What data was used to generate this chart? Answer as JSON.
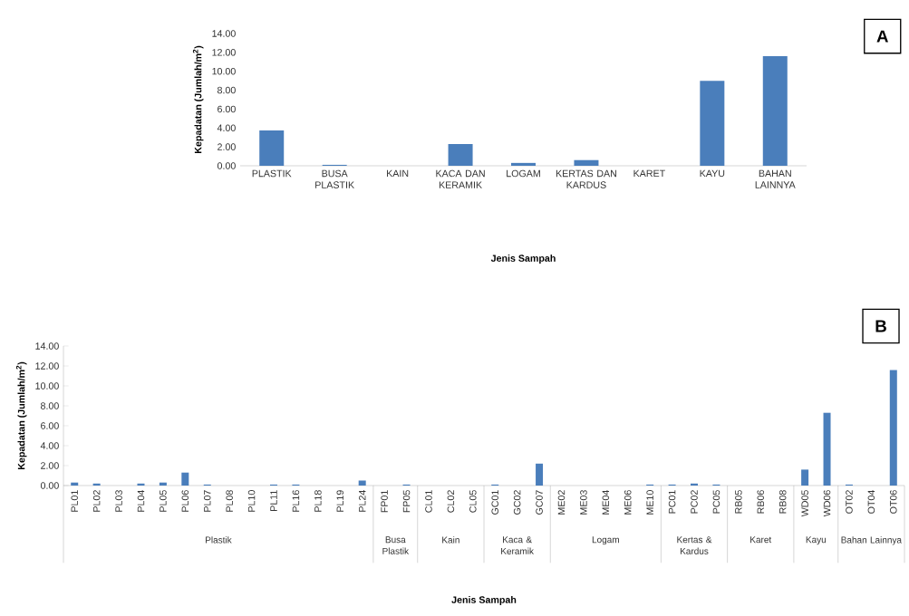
{
  "chart_data": [
    {
      "type": "bar",
      "categories": [
        "PLASTIK",
        "BUSA PLASTIK",
        "KAIN",
        "KACA DAN KERAMIK",
        "LOGAM",
        "KERTAS DAN KARDUS",
        "KARET",
        "KAYU",
        "BAHAN LAINNYA"
      ],
      "values": [
        3.75,
        0.1,
        0,
        2.3,
        0.3,
        0.6,
        0,
        9.0,
        11.6
      ],
      "color": "#4a7ebb",
      "xlabel": "Jenis Sampah",
      "ylabel": "Kepadatan (Jumlah/m$^{2}$)",
      "ylim": [
        0,
        14
      ],
      "yticks": [
        {
          "value": 0,
          "label": "0.00"
        },
        {
          "value": 2,
          "label": "2.00"
        },
        {
          "value": 4,
          "label": "4.00"
        },
        {
          "value": 6,
          "label": "6.00"
        },
        {
          "value": 8,
          "label": "8.00"
        },
        {
          "value": 10,
          "label": "10.00"
        },
        {
          "value": 12,
          "label": "12.00"
        },
        {
          "value": 14,
          "label": "14.00"
        }
      ],
      "annotations": [
        "A"
      ]
    },
    {
      "type": "bar",
      "categories": [
        "PL01",
        "PL02",
        "PL03",
        "PL04",
        "PL05",
        "PL06",
        "PL07",
        "PL08",
        "PL10",
        "PL11",
        "PL16",
        "PL18",
        "PL19",
        "PL24",
        "FP01",
        "FP05",
        "CL01",
        "CL02",
        "CL05",
        "GC01",
        "GC02",
        "GC07",
        "ME02",
        "ME03",
        "ME04",
        "ME06",
        "ME10",
        "PC01",
        "PC02",
        "PC05",
        "RB05",
        "RB06",
        "RB08",
        "WD05",
        "WD06",
        "OT02",
        "OT04",
        "OT06"
      ],
      "values": [
        0.3,
        0.2,
        0,
        0.2,
        0.3,
        1.3,
        0.1,
        0,
        0,
        0.1,
        0.1,
        0,
        0,
        0.5,
        0,
        0.1,
        0,
        0,
        0,
        0.1,
        0,
        2.2,
        0,
        0,
        0,
        0,
        0.1,
        0.1,
        0.2,
        0.1,
        0,
        0,
        0,
        1.6,
        7.3,
        0.1,
        0,
        11.6
      ],
      "color": "#4a7ebb",
      "xlabel": "Jenis Sampah",
      "ylabel": "Kepadatan (Jumlah/m$^{2}$)",
      "ylim": [
        0,
        14
      ],
      "yticks": [
        {
          "value": 0,
          "label": "0.00"
        },
        {
          "value": 2,
          "label": "2.00"
        },
        {
          "value": 4,
          "label": "4.00"
        },
        {
          "value": 6,
          "label": "6.00"
        },
        {
          "value": 8,
          "label": "8.00"
        },
        {
          "value": 10,
          "label": "10.00"
        },
        {
          "value": 12,
          "label": "12.00"
        },
        {
          "value": 14,
          "label": "14.00"
        }
      ],
      "annotations": [
        "B",
        "Plastik",
        "Busa Plastik",
        "Kain",
        "Kaca & Keramik",
        "Logam",
        "Kertas & Kardus",
        "Karet",
        "Kayu",
        "Bahan Lainnya"
      ]
    }
  ]
}
